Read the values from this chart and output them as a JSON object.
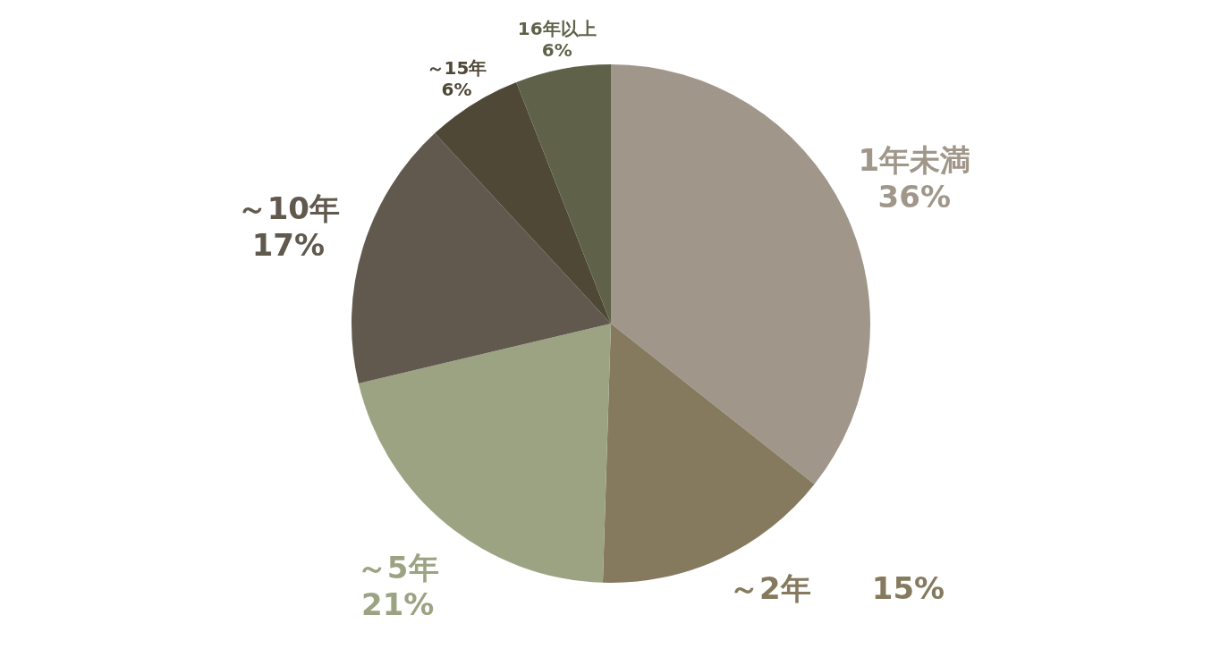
{
  "chart_data": {
    "type": "pie",
    "categories": [
      "1年未満",
      "～2年",
      "～5年",
      "～10年",
      "～15年",
      "16年以上"
    ],
    "values": [
      36,
      15,
      21,
      17,
      6,
      6
    ],
    "colors": [
      "#a0978a",
      "#857a5e",
      "#9ca383",
      "#61594e",
      "#4f4836",
      "#5f6249"
    ],
    "value_labels": [
      "36%",
      "15%",
      "21%",
      "17%",
      "6%",
      "6%"
    ]
  }
}
